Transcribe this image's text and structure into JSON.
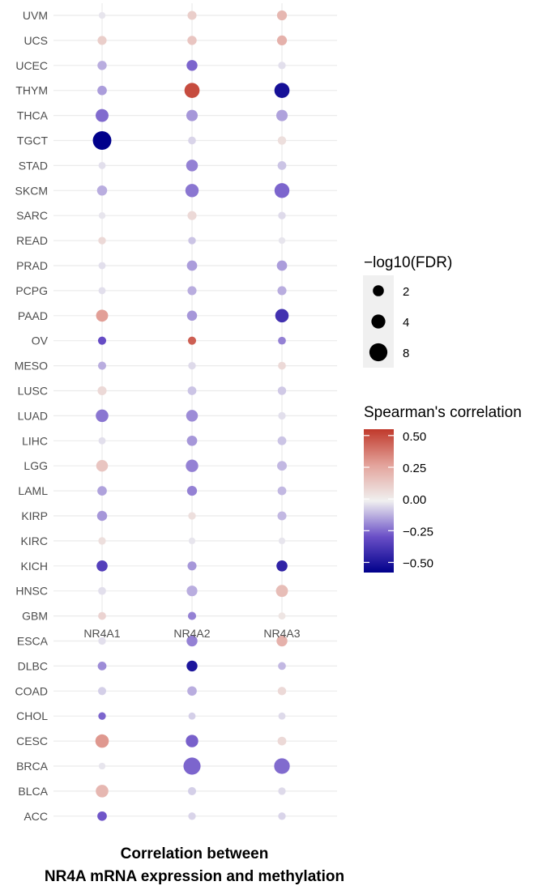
{
  "chart_data": {
    "type": "scatter",
    "subtype": "dot-matrix",
    "x_categories": [
      "NR4A1",
      "NR4A2",
      "NR4A3"
    ],
    "y_categories": [
      "UVM",
      "UCS",
      "UCEC",
      "THYM",
      "THCA",
      "TGCT",
      "STAD",
      "SKCM",
      "SARC",
      "READ",
      "PRAD",
      "PCPG",
      "PAAD",
      "OV",
      "MESO",
      "LUSC",
      "LUAD",
      "LIHC",
      "LGG",
      "LAML",
      "KIRP",
      "KIRC",
      "KICH",
      "HNSC",
      "GBM",
      "ESCA",
      "DLBC",
      "COAD",
      "CHOL",
      "CESC",
      "BRCA",
      "BLCA",
      "ACC"
    ],
    "xlabel": "Correlation between\nNR4A mRNA expression and methylation",
    "xlabel_lines": [
      "Correlation between",
      "NR4A mRNA expression and methylation"
    ],
    "points": [
      {
        "cancer": "UVM",
        "gene": "NR4A1",
        "cor": -0.02,
        "fdr": 0.3
      },
      {
        "cancer": "UVM",
        "gene": "NR4A2",
        "cor": 0.12,
        "fdr": 1.0
      },
      {
        "cancer": "UVM",
        "gene": "NR4A3",
        "cor": 0.2,
        "fdr": 1.4
      },
      {
        "cancer": "UCS",
        "gene": "NR4A1",
        "cor": 0.12,
        "fdr": 1.0
      },
      {
        "cancer": "UCS",
        "gene": "NR4A2",
        "cor": 0.15,
        "fdr": 1.1
      },
      {
        "cancer": "UCS",
        "gene": "NR4A3",
        "cor": 0.22,
        "fdr": 1.4
      },
      {
        "cancer": "UCEC",
        "gene": "NR4A1",
        "cor": -0.12,
        "fdr": 1.1
      },
      {
        "cancer": "UCEC",
        "gene": "NR4A2",
        "cor": -0.25,
        "fdr": 1.9
      },
      {
        "cancer": "UCEC",
        "gene": "NR4A3",
        "cor": -0.03,
        "fdr": 0.5
      },
      {
        "cancer": "THYM",
        "gene": "NR4A1",
        "cor": -0.15,
        "fdr": 1.2
      },
      {
        "cancer": "THYM",
        "gene": "NR4A2",
        "cor": 0.5,
        "fdr": 5.0
      },
      {
        "cancer": "THYM",
        "gene": "NR4A3",
        "cor": -0.52,
        "fdr": 5.0
      },
      {
        "cancer": "THCA",
        "gene": "NR4A1",
        "cor": -0.24,
        "fdr": 3.2
      },
      {
        "cancer": "THCA",
        "gene": "NR4A2",
        "cor": -0.16,
        "fdr": 2.2
      },
      {
        "cancer": "THCA",
        "gene": "NR4A3",
        "cor": -0.14,
        "fdr": 2.2
      },
      {
        "cancer": "TGCT",
        "gene": "NR4A1",
        "cor": -0.58,
        "fdr": 8.6
      },
      {
        "cancer": "TGCT",
        "gene": "NR4A2",
        "cor": -0.05,
        "fdr": 0.6
      },
      {
        "cancer": "TGCT",
        "gene": "NR4A3",
        "cor": 0.06,
        "fdr": 0.8
      },
      {
        "cancer": "STAD",
        "gene": "NR4A1",
        "cor": -0.03,
        "fdr": 0.4
      },
      {
        "cancer": "STAD",
        "gene": "NR4A2",
        "cor": -0.2,
        "fdr": 2.4
      },
      {
        "cancer": "STAD",
        "gene": "NR4A3",
        "cor": -0.08,
        "fdr": 0.9
      },
      {
        "cancer": "SKCM",
        "gene": "NR4A1",
        "cor": -0.12,
        "fdr": 1.5
      },
      {
        "cancer": "SKCM",
        "gene": "NR4A2",
        "cor": -0.22,
        "fdr": 3.5
      },
      {
        "cancer": "SKCM",
        "gene": "NR4A3",
        "cor": -0.25,
        "fdr": 4.8
      },
      {
        "cancer": "SARC",
        "gene": "NR4A1",
        "cor": -0.02,
        "fdr": 0.3
      },
      {
        "cancer": "SARC",
        "gene": "NR4A2",
        "cor": 0.08,
        "fdr": 1.0
      },
      {
        "cancer": "SARC",
        "gene": "NR4A3",
        "cor": -0.04,
        "fdr": 0.5
      },
      {
        "cancer": "READ",
        "gene": "NR4A1",
        "cor": 0.08,
        "fdr": 0.5
      },
      {
        "cancer": "READ",
        "gene": "NR4A2",
        "cor": -0.08,
        "fdr": 0.5
      },
      {
        "cancer": "READ",
        "gene": "NR4A3",
        "cor": -0.02,
        "fdr": 0.3
      },
      {
        "cancer": "PRAD",
        "gene": "NR4A1",
        "cor": -0.03,
        "fdr": 0.4
      },
      {
        "cancer": "PRAD",
        "gene": "NR4A2",
        "cor": -0.15,
        "fdr": 1.6
      },
      {
        "cancer": "PRAD",
        "gene": "NR4A3",
        "cor": -0.15,
        "fdr": 1.6
      },
      {
        "cancer": "PCPG",
        "gene": "NR4A1",
        "cor": -0.03,
        "fdr": 0.4
      },
      {
        "cancer": "PCPG",
        "gene": "NR4A2",
        "cor": -0.12,
        "fdr": 1.0
      },
      {
        "cancer": "PCPG",
        "gene": "NR4A3",
        "cor": -0.12,
        "fdr": 1.0
      },
      {
        "cancer": "PAAD",
        "gene": "NR4A1",
        "cor": 0.28,
        "fdr": 2.6
      },
      {
        "cancer": "PAAD",
        "gene": "NR4A2",
        "cor": -0.16,
        "fdr": 1.5
      },
      {
        "cancer": "PAAD",
        "gene": "NR4A3",
        "cor": -0.4,
        "fdr": 3.6
      },
      {
        "cancer": "OV",
        "gene": "NR4A1",
        "cor": -0.3,
        "fdr": 0.7
      },
      {
        "cancer": "OV",
        "gene": "NR4A2",
        "cor": 0.45,
        "fdr": 0.7
      },
      {
        "cancer": "OV",
        "gene": "NR4A3",
        "cor": -0.2,
        "fdr": 0.6
      },
      {
        "cancer": "MESO",
        "gene": "NR4A1",
        "cor": -0.12,
        "fdr": 0.7
      },
      {
        "cancer": "MESO",
        "gene": "NR4A2",
        "cor": -0.04,
        "fdr": 0.5
      },
      {
        "cancer": "MESO",
        "gene": "NR4A3",
        "cor": 0.08,
        "fdr": 0.6
      },
      {
        "cancer": "LUSC",
        "gene": "NR4A1",
        "cor": 0.08,
        "fdr": 1.0
      },
      {
        "cancer": "LUSC",
        "gene": "NR4A2",
        "cor": -0.08,
        "fdr": 0.9
      },
      {
        "cancer": "LUSC",
        "gene": "NR4A3",
        "cor": -0.07,
        "fdr": 0.8
      },
      {
        "cancer": "LUAD",
        "gene": "NR4A1",
        "cor": -0.22,
        "fdr": 3.0
      },
      {
        "cancer": "LUAD",
        "gene": "NR4A2",
        "cor": -0.18,
        "fdr": 2.4
      },
      {
        "cancer": "LUAD",
        "gene": "NR4A3",
        "cor": -0.03,
        "fdr": 0.5
      },
      {
        "cancer": "LIHC",
        "gene": "NR4A1",
        "cor": -0.03,
        "fdr": 0.4
      },
      {
        "cancer": "LIHC",
        "gene": "NR4A2",
        "cor": -0.16,
        "fdr": 1.6
      },
      {
        "cancer": "LIHC",
        "gene": "NR4A3",
        "cor": -0.08,
        "fdr": 0.9
      },
      {
        "cancer": "LGG",
        "gene": "NR4A1",
        "cor": 0.15,
        "fdr": 2.4
      },
      {
        "cancer": "LGG",
        "gene": "NR4A2",
        "cor": -0.2,
        "fdr": 2.9
      },
      {
        "cancer": "LGG",
        "gene": "NR4A3",
        "cor": -0.1,
        "fdr": 1.3
      },
      {
        "cancer": "LAML",
        "gene": "NR4A1",
        "cor": -0.14,
        "fdr": 1.2
      },
      {
        "cancer": "LAML",
        "gene": "NR4A2",
        "cor": -0.2,
        "fdr": 1.4
      },
      {
        "cancer": "LAML",
        "gene": "NR4A3",
        "cor": -0.1,
        "fdr": 0.9
      },
      {
        "cancer": "KIRP",
        "gene": "NR4A1",
        "cor": -0.16,
        "fdr": 1.5
      },
      {
        "cancer": "KIRP",
        "gene": "NR4A2",
        "cor": 0.06,
        "fdr": 0.5
      },
      {
        "cancer": "KIRP",
        "gene": "NR4A3",
        "cor": -0.1,
        "fdr": 1.0
      },
      {
        "cancer": "KIRC",
        "gene": "NR4A1",
        "cor": 0.06,
        "fdr": 0.5
      },
      {
        "cancer": "KIRC",
        "gene": "NR4A2",
        "cor": -0.02,
        "fdr": 0.3
      },
      {
        "cancer": "KIRC",
        "gene": "NR4A3",
        "cor": -0.02,
        "fdr": 0.3
      },
      {
        "cancer": "KICH",
        "gene": "NR4A1",
        "cor": -0.35,
        "fdr": 2.0
      },
      {
        "cancer": "KICH",
        "gene": "NR4A2",
        "cor": -0.16,
        "fdr": 1.0
      },
      {
        "cancer": "KICH",
        "gene": "NR4A3",
        "cor": -0.45,
        "fdr": 2.0
      },
      {
        "cancer": "HNSC",
        "gene": "NR4A1",
        "cor": -0.03,
        "fdr": 0.6
      },
      {
        "cancer": "HNSC",
        "gene": "NR4A2",
        "cor": -0.12,
        "fdr": 1.8
      },
      {
        "cancer": "HNSC",
        "gene": "NR4A3",
        "cor": 0.18,
        "fdr": 2.6
      },
      {
        "cancer": "GBM",
        "gene": "NR4A1",
        "cor": 0.1,
        "fdr": 0.6
      },
      {
        "cancer": "GBM",
        "gene": "NR4A2",
        "cor": -0.2,
        "fdr": 0.7
      },
      {
        "cancer": "GBM",
        "gene": "NR4A3",
        "cor": 0.04,
        "fdr": 0.4
      },
      {
        "cancer": "ESCA",
        "gene": "NR4A1",
        "cor": -0.03,
        "fdr": 0.5
      },
      {
        "cancer": "ESCA",
        "gene": "NR4A2",
        "cor": -0.2,
        "fdr": 1.9
      },
      {
        "cancer": "ESCA",
        "gene": "NR4A3",
        "cor": 0.22,
        "fdr": 1.9
      },
      {
        "cancer": "DLBC",
        "gene": "NR4A1",
        "cor": -0.18,
        "fdr": 0.9
      },
      {
        "cancer": "DLBC",
        "gene": "NR4A2",
        "cor": -0.5,
        "fdr": 1.9
      },
      {
        "cancer": "DLBC",
        "gene": "NR4A3",
        "cor": -0.1,
        "fdr": 0.6
      },
      {
        "cancer": "COAD",
        "gene": "NR4A1",
        "cor": -0.06,
        "fdr": 0.7
      },
      {
        "cancer": "COAD",
        "gene": "NR4A2",
        "cor": -0.12,
        "fdr": 1.2
      },
      {
        "cancer": "COAD",
        "gene": "NR4A3",
        "cor": 0.08,
        "fdr": 0.8
      },
      {
        "cancer": "CHOL",
        "gene": "NR4A1",
        "cor": -0.25,
        "fdr": 0.5
      },
      {
        "cancer": "CHOL",
        "gene": "NR4A2",
        "cor": -0.06,
        "fdr": 0.4
      },
      {
        "cancer": "CHOL",
        "gene": "NR4A3",
        "cor": -0.04,
        "fdr": 0.4
      },
      {
        "cancer": "CESC",
        "gene": "NR4A1",
        "cor": 0.3,
        "fdr": 3.6
      },
      {
        "cancer": "CESC",
        "gene": "NR4A2",
        "cor": -0.26,
        "fdr": 2.9
      },
      {
        "cancer": "CESC",
        "gene": "NR4A3",
        "cor": 0.08,
        "fdr": 0.9
      },
      {
        "cancer": "BRCA",
        "gene": "NR4A1",
        "cor": -0.02,
        "fdr": 0.3
      },
      {
        "cancer": "BRCA",
        "gene": "NR4A2",
        "cor": -0.25,
        "fdr": 7.0
      },
      {
        "cancer": "BRCA",
        "gene": "NR4A3",
        "cor": -0.24,
        "fdr": 5.5
      },
      {
        "cancer": "BLCA",
        "gene": "NR4A1",
        "cor": 0.2,
        "fdr": 3.0
      },
      {
        "cancer": "BLCA",
        "gene": "NR4A2",
        "cor": -0.06,
        "fdr": 0.7
      },
      {
        "cancer": "BLCA",
        "gene": "NR4A3",
        "cor": -0.04,
        "fdr": 0.5
      },
      {
        "cancer": "ACC",
        "gene": "NR4A1",
        "cor": -0.28,
        "fdr": 1.2
      },
      {
        "cancer": "ACC",
        "gene": "NR4A2",
        "cor": -0.05,
        "fdr": 0.5
      },
      {
        "cancer": "ACC",
        "gene": "NR4A3",
        "cor": -0.05,
        "fdr": 0.5
      }
    ],
    "size_legend": {
      "title": "−log10(FDR)",
      "values": [
        2,
        4,
        8
      ],
      "labels": [
        "2",
        "4",
        "8"
      ]
    },
    "color_legend": {
      "title": "Spearman's correlation",
      "range": [
        -0.58,
        0.55
      ],
      "ticks": [
        0.5,
        0.25,
        0.0,
        -0.25,
        -0.5
      ],
      "tick_labels": [
        "0.50",
        "0.25",
        "0.00",
        "−0.25",
        "−0.50"
      ],
      "low_color": "#00008b",
      "mid_color": "#f0f0f0",
      "high_color": "#c0392b"
    },
    "grid": true,
    "legend_placement": "right"
  }
}
